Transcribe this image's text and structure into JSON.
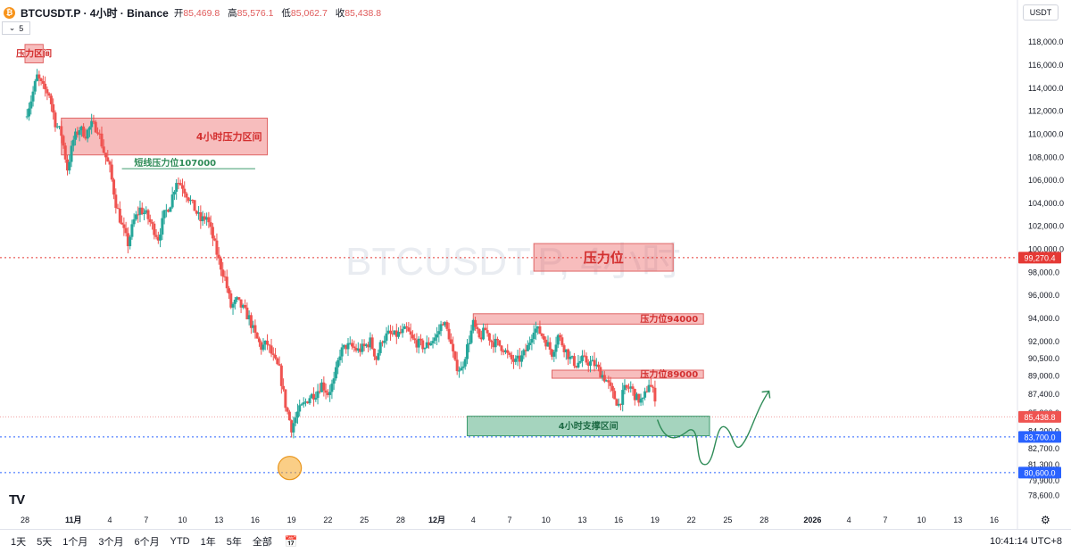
{
  "header": {
    "symbol_title": "BTCUSDT.P · 4小时 · Binance",
    "ohlc": [
      {
        "label": "开",
        "value": "85,469.8"
      },
      {
        "label": "高",
        "value": "85,576.1"
      },
      {
        "label": "低",
        "value": "85,062.7"
      },
      {
        "label": "收",
        "value": "85,438.8"
      }
    ],
    "currency": "USDT",
    "indicator_count": "5"
  },
  "watermark": "BTCUSDT.P, 4小时",
  "colors": {
    "up": "#26a69a",
    "down": "#ef5350",
    "red_zone": "#f28b8b",
    "green_zone": "#5fb38a",
    "red_dotted": "#e53935",
    "blue_dotted": "#2962ff",
    "orange": "#f5a623"
  },
  "chart_data": {
    "type": "candlestick",
    "ylim": [
      77800,
      119800
    ],
    "y_ticks": [
      "118,000.0",
      "116,000.0",
      "114,000.0",
      "112,000.0",
      "110,000.0",
      "108,000.0",
      "106,000.0",
      "104,000.0",
      "102,000.0",
      "100,000.0",
      "98,000.0",
      "96,000.0",
      "94,000.0",
      "92,000.0",
      "90,500.0",
      "89,000.0",
      "87,400.0",
      "85,800.0",
      "84,200.0",
      "82,700.0",
      "81,300.0",
      "79,900.0",
      "78,600.0"
    ],
    "y_tick_values": [
      118000,
      116000,
      114000,
      112000,
      110000,
      108000,
      106000,
      104000,
      102000,
      100000,
      98000,
      96000,
      94000,
      92000,
      90500,
      89000,
      87400,
      85800,
      84200,
      82700,
      81300,
      79900,
      78600
    ],
    "x_ticks": [
      {
        "label": "28",
        "day": 0
      },
      {
        "label": "11月",
        "day": 4
      },
      {
        "label": "4",
        "day": 7
      },
      {
        "label": "7",
        "day": 10
      },
      {
        "label": "10",
        "day": 13
      },
      {
        "label": "13",
        "day": 16
      },
      {
        "label": "16",
        "day": 19
      },
      {
        "label": "19",
        "day": 22
      },
      {
        "label": "22",
        "day": 25
      },
      {
        "label": "25",
        "day": 28
      },
      {
        "label": "28",
        "day": 31
      },
      {
        "label": "12月",
        "day": 34
      },
      {
        "label": "4",
        "day": 37
      },
      {
        "label": "7",
        "day": 40
      },
      {
        "label": "10",
        "day": 43
      },
      {
        "label": "13",
        "day": 46
      },
      {
        "label": "16",
        "day": 49
      },
      {
        "label": "19",
        "day": 52
      },
      {
        "label": "22",
        "day": 55
      },
      {
        "label": "25",
        "day": 58
      },
      {
        "label": "28",
        "day": 61
      },
      {
        "label": "2026",
        "day": 65
      },
      {
        "label": "4",
        "day": 68
      },
      {
        "label": "7",
        "day": 71
      },
      {
        "label": "10",
        "day": 74
      },
      {
        "label": "13",
        "day": 77
      },
      {
        "label": "16",
        "day": 80
      }
    ],
    "x_ticks_bold": [
      "11月",
      "12月",
      "2026"
    ],
    "x_axis": {
      "start": "10月28日",
      "end": "1月17日",
      "unit": "day"
    },
    "price_path": [
      [
        0,
        111500
      ],
      [
        0.5,
        113000
      ],
      [
        1,
        115000
      ],
      [
        1.5,
        114000
      ],
      [
        2,
        113500
      ],
      [
        2.5,
        111000
      ],
      [
        3,
        110000
      ],
      [
        3.5,
        107000
      ],
      [
        4,
        109500
      ],
      [
        4.5,
        110500
      ],
      [
        5,
        110000
      ],
      [
        5.5,
        110800
      ],
      [
        6,
        110500
      ],
      [
        6.5,
        108500
      ],
      [
        7,
        107000
      ],
      [
        7.5,
        104000
      ],
      [
        8,
        102000
      ],
      [
        8.5,
        100500
      ],
      [
        9,
        102500
      ],
      [
        9.5,
        103500
      ],
      [
        10,
        103000
      ],
      [
        10.5,
        102000
      ],
      [
        11,
        101000
      ],
      [
        11.5,
        103000
      ],
      [
        12,
        104000
      ],
      [
        12.5,
        106000
      ],
      [
        13,
        105500
      ],
      [
        13.5,
        104500
      ],
      [
        14,
        103500
      ],
      [
        14.5,
        102500
      ],
      [
        15,
        102800
      ],
      [
        15.5,
        101000
      ],
      [
        16,
        99000
      ],
      [
        16.5,
        97500
      ],
      [
        17,
        95000
      ],
      [
        17.5,
        95500
      ],
      [
        18,
        94800
      ],
      [
        18.5,
        94000
      ],
      [
        19,
        92500
      ],
      [
        19.5,
        91500
      ],
      [
        20,
        91800
      ],
      [
        20.5,
        90500
      ],
      [
        21,
        89500
      ],
      [
        21.5,
        86500
      ],
      [
        22,
        84500
      ],
      [
        22.5,
        85800
      ],
      [
        23,
        86500
      ],
      [
        23.5,
        87200
      ],
      [
        24,
        87500
      ],
      [
        24.5,
        88300
      ],
      [
        25,
        87500
      ],
      [
        25.5,
        88500
      ],
      [
        26,
        91000
      ],
      [
        26.5,
        91600
      ],
      [
        27,
        91500
      ],
      [
        27.5,
        91200
      ],
      [
        28,
        91500
      ],
      [
        28.5,
        92000
      ],
      [
        29,
        90500
      ],
      [
        29.5,
        92200
      ],
      [
        30,
        92600
      ],
      [
        30.5,
        92500
      ],
      [
        31,
        92700
      ],
      [
        31.5,
        93000
      ],
      [
        32,
        92100
      ],
      [
        32.5,
        91800
      ],
      [
        33,
        91500
      ],
      [
        33.5,
        92000
      ],
      [
        34,
        92500
      ],
      [
        34.5,
        93800
      ],
      [
        35,
        92500
      ],
      [
        35.5,
        90000
      ],
      [
        36,
        89500
      ],
      [
        36.5,
        91500
      ],
      [
        37,
        93500
      ],
      [
        37.5,
        92200
      ],
      [
        38,
        93000
      ],
      [
        38.5,
        92000
      ],
      [
        39,
        91800
      ],
      [
        39.5,
        91400
      ],
      [
        40,
        90500
      ],
      [
        40.5,
        90200
      ],
      [
        41,
        90600
      ],
      [
        41.5,
        91500
      ],
      [
        42,
        93200
      ],
      [
        42.5,
        92800
      ],
      [
        43,
        92000
      ],
      [
        43.5,
        91000
      ],
      [
        44,
        92500
      ],
      [
        44.5,
        91500
      ],
      [
        45,
        90500
      ],
      [
        45.5,
        90000
      ],
      [
        46,
        90400
      ],
      [
        46.5,
        90200
      ],
      [
        47,
        90000
      ],
      [
        47.5,
        89300
      ],
      [
        48,
        88600
      ],
      [
        48.5,
        87400
      ],
      [
        49,
        86500
      ],
      [
        49.5,
        87800
      ],
      [
        50,
        88000
      ],
      [
        50.5,
        87000
      ],
      [
        51,
        86800
      ],
      [
        51.5,
        88400
      ],
      [
        52,
        87200
      ]
    ],
    "annotations": [
      {
        "type": "zone",
        "label": "压力区间",
        "color": "red",
        "top": 117800,
        "bottom": 116200,
        "day_start": 0,
        "day_end": 1.5
      },
      {
        "type": "zone",
        "label": "4小时压力区间",
        "color": "red",
        "top": 111400,
        "bottom": 108200,
        "day_start": 3,
        "day_end": 20
      },
      {
        "type": "line",
        "label": "短线压力位107000",
        "color": "green",
        "price": 107000,
        "day_start": 8,
        "day_end": 19
      },
      {
        "type": "zone",
        "label": "压力位",
        "color": "red",
        "top": 100500,
        "bottom": 98100,
        "day_start": 42,
        "day_end": 53.5
      },
      {
        "type": "zone",
        "label": "压力位94000",
        "color": "red",
        "top": 94400,
        "bottom": 93500,
        "day_start": 37,
        "day_end": 56
      },
      {
        "type": "zone",
        "label": "压力位89000",
        "color": "red",
        "top": 89500,
        "bottom": 88800,
        "day_start": 43.5,
        "day_end": 56
      },
      {
        "type": "zone",
        "label": "4小时支撑区间",
        "color": "green",
        "top": 85500,
        "bottom": 83800,
        "day_start": 36.5,
        "day_end": 56.5
      },
      {
        "type": "hline",
        "label": "99,270.4",
        "color": "red_dotted",
        "price": 99270.4
      },
      {
        "type": "hline",
        "label": "83,700.0",
        "color": "blue_dotted",
        "price": 83700
      },
      {
        "type": "hline",
        "label": "80,600.0",
        "color": "blue_dotted",
        "price": 80600
      },
      {
        "type": "hline",
        "label": "85,438.8",
        "color": "last_price",
        "price": 85438.8
      }
    ],
    "circle_marker_price": 81000
  },
  "bottom_bar": {
    "timeframes": [
      "1天",
      "5天",
      "1个月",
      "3个月",
      "6个月",
      "YTD",
      "1年",
      "5年",
      "全部"
    ],
    "clock": "10:41:14 UTC+8"
  }
}
